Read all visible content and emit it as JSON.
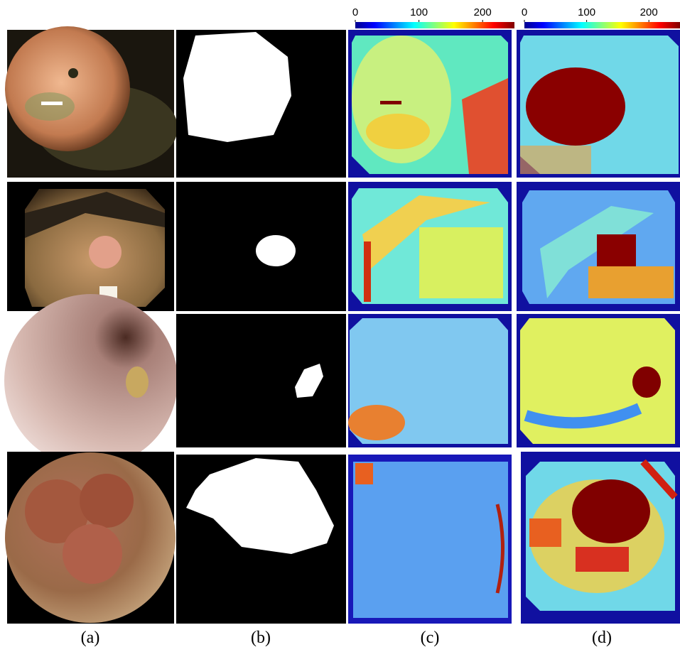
{
  "colorbars": [
    {
      "lim": [
        0,
        250
      ],
      "ticks": [
        0,
        100,
        200
      ]
    },
    {
      "lim": [
        0,
        250
      ],
      "ticks": [
        0,
        100,
        200
      ]
    }
  ],
  "panel_labels": [
    "(a)",
    "(b)",
    "(c)",
    "(d)"
  ]
}
